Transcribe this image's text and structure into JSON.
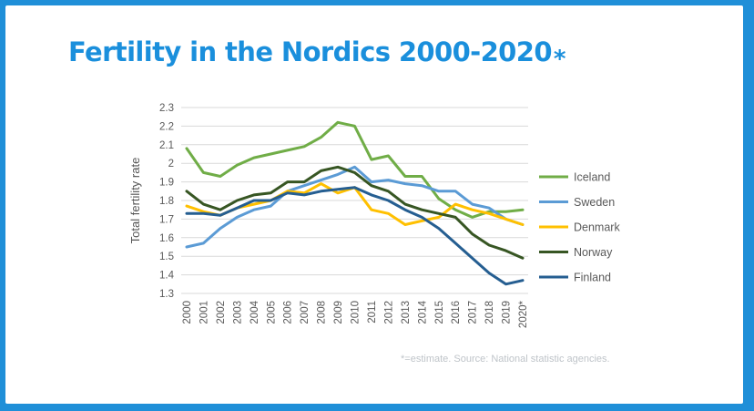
{
  "slide": {
    "title": "Fertility in the Nordics 2000-2020",
    "title_mark": "*",
    "footnote": "*=estimate. Source: National statistic agencies."
  },
  "chart_data": {
    "type": "line",
    "title": "Fertility in the Nordics 2000-2020*",
    "xlabel": "",
    "ylabel": "Total fertility rate",
    "ylim": [
      1.3,
      2.3
    ],
    "yticks": [
      "1.3",
      "1.4",
      "1.5",
      "1.6",
      "1.7",
      "1.8",
      "1.9",
      "2",
      "2.1",
      "2.2",
      "2.3"
    ],
    "categories": [
      "2000",
      "2001",
      "2002",
      "2003",
      "2004",
      "2005",
      "2006",
      "2007",
      "2008",
      "2009",
      "2010",
      "2011",
      "2012",
      "2013",
      "2014",
      "2015",
      "2016",
      "2017",
      "2018",
      "2019",
      "2020*"
    ],
    "grid": true,
    "legend": "right",
    "series": [
      {
        "name": "Iceland",
        "color": "#70ad47",
        "values": [
          2.08,
          1.95,
          1.93,
          1.99,
          2.03,
          2.05,
          2.07,
          2.09,
          2.14,
          2.22,
          2.2,
          2.02,
          2.04,
          1.93,
          1.93,
          1.81,
          1.75,
          1.71,
          1.74,
          1.74,
          1.75
        ]
      },
      {
        "name": "Sweden",
        "color": "#5b9bd5",
        "values": [
          1.55,
          1.57,
          1.65,
          1.71,
          1.75,
          1.77,
          1.85,
          1.88,
          1.91,
          1.94,
          1.98,
          1.9,
          1.91,
          1.89,
          1.88,
          1.85,
          1.85,
          1.78,
          1.76,
          1.7,
          1.67
        ]
      },
      {
        "name": "Denmark",
        "color": "#ffc000",
        "values": [
          1.77,
          1.74,
          1.72,
          1.76,
          1.78,
          1.8,
          1.85,
          1.84,
          1.89,
          1.84,
          1.87,
          1.75,
          1.73,
          1.67,
          1.69,
          1.71,
          1.78,
          1.75,
          1.73,
          1.7,
          1.67
        ]
      },
      {
        "name": "Norway",
        "color": "#375623",
        "values": [
          1.85,
          1.78,
          1.75,
          1.8,
          1.83,
          1.84,
          1.9,
          1.9,
          1.96,
          1.98,
          1.95,
          1.88,
          1.85,
          1.78,
          1.75,
          1.73,
          1.71,
          1.62,
          1.56,
          1.53,
          1.49
        ]
      },
      {
        "name": "Finland",
        "color": "#255e91",
        "values": [
          1.73,
          1.73,
          1.72,
          1.76,
          1.8,
          1.8,
          1.84,
          1.83,
          1.85,
          1.86,
          1.87,
          1.83,
          1.8,
          1.75,
          1.71,
          1.65,
          1.57,
          1.49,
          1.41,
          1.35,
          1.37
        ]
      }
    ]
  }
}
